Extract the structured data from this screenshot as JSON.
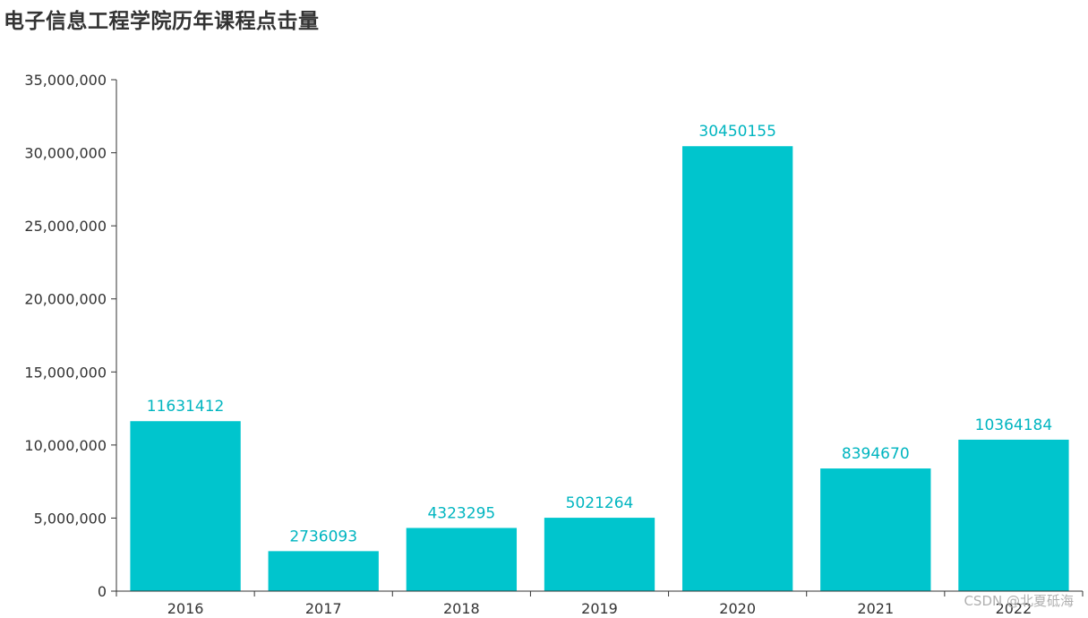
{
  "chart_data": {
    "type": "bar",
    "title": "电子信息工程学院历年课程点击量",
    "categories": [
      "2016",
      "2017",
      "2018",
      "2019",
      "2020",
      "2021",
      "2022"
    ],
    "values": [
      11631412,
      2736093,
      4323295,
      5021264,
      30450155,
      8394670,
      10364184
    ],
    "data_labels": [
      "11631412",
      "2736093",
      "4323295",
      "5021264",
      "30450155",
      "8394670",
      "10364184"
    ],
    "ylim": [
      0,
      35000000
    ],
    "yticks": [
      0,
      5000000,
      10000000,
      15000000,
      20000000,
      25000000,
      30000000,
      35000000
    ],
    "ytick_labels": [
      "0",
      "5,000,000",
      "10,000,000",
      "15,000,000",
      "20,000,000",
      "25,000,000",
      "30,000,000",
      "35,000,000"
    ],
    "xlabel": "",
    "ylabel": "",
    "grid": false,
    "legend": false,
    "bar_color": "#00c5cd",
    "label_color": "#00b5c0",
    "axis_color": "#333333"
  },
  "watermark": "CSDN @北夏砥海"
}
